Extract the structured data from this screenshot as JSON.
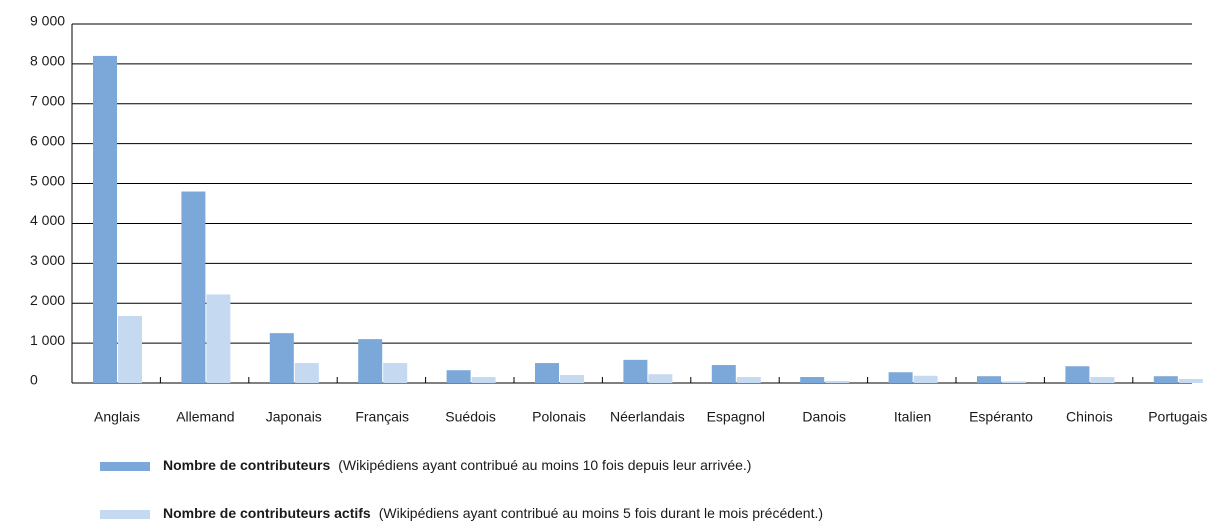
{
  "chart_data": {
    "type": "bar",
    "categories": [
      "Anglais",
      "Allemand",
      "Japonais",
      "Français",
      "Suédois",
      "Polonais",
      "Néerlandais",
      "Espagnol",
      "Danois",
      "Italien",
      "Espéranto",
      "Chinois",
      "Portugais"
    ],
    "series": [
      {
        "name": "Nombre de contributeurs",
        "description": "(Wikipédiens ayant contribué au moins 10 fois depuis leur arrivée.)",
        "color": "#7ba7d9",
        "values": [
          8200,
          4800,
          1250,
          1100,
          320,
          500,
          580,
          450,
          150,
          270,
          170,
          420,
          170
        ]
      },
      {
        "name": "Nombre de contributeurs actifs",
        "description": "(Wikipédiens ayant contribué au moins 5 fois durant le mois précédent.)",
        "color": "#c5d9f1",
        "values": [
          1680,
          2220,
          500,
          500,
          150,
          200,
          220,
          150,
          50,
          180,
          40,
          150,
          100
        ]
      }
    ],
    "ylim": [
      0,
      9000
    ],
    "yticks": [
      0,
      {
        "value": 1000,
        "label": "1 000"
      },
      {
        "value": 2000,
        "label": "2 000"
      },
      {
        "value": 3000,
        "label": "3 000"
      },
      {
        "value": 4000,
        "label": "4 000"
      },
      {
        "value": 5000,
        "label": "5 000"
      },
      {
        "value": 6000,
        "label": "6 000"
      },
      {
        "value": 7000,
        "label": "7 000"
      },
      {
        "value": 8000,
        "label": "8 000"
      },
      {
        "value": 9000,
        "label": "9 000"
      }
    ],
    "grid": true
  }
}
